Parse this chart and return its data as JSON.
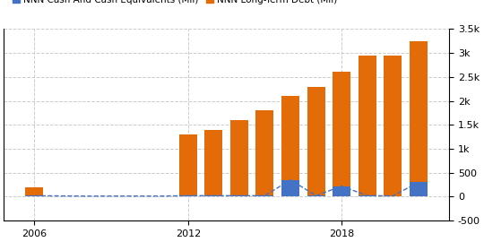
{
  "years": [
    2006,
    2007,
    2008,
    2009,
    2010,
    2011,
    2012,
    2013,
    2014,
    2015,
    2016,
    2017,
    2018,
    2019,
    2020,
    2021
  ],
  "cash": [
    20,
    15,
    12,
    12,
    12,
    12,
    20,
    20,
    20,
    20,
    350,
    20,
    220,
    20,
    15,
    300
  ],
  "debt": [
    200,
    0,
    0,
    0,
    0,
    0,
    1300,
    1400,
    1600,
    1800,
    2100,
    2300,
    2600,
    2950,
    2950,
    3250
  ],
  "cash_color": "#4472C4",
  "debt_color": "#E36C09",
  "ylim": [
    -500,
    3500
  ],
  "yticks": [
    -500,
    0,
    500,
    1000,
    1500,
    2000,
    2500,
    3000,
    3500
  ],
  "ytick_labels": [
    "-500",
    "0",
    "500",
    "1k",
    "1.5k",
    "2k",
    "2.5k",
    "3k",
    "3.5k"
  ],
  "xticks": [
    2006,
    2012,
    2018
  ],
  "bar_width": 0.7,
  "xlim_left": 2004.8,
  "xlim_right": 2022.2,
  "bg_color": "#ffffff",
  "grid_color": "#cccccc",
  "dashed_line_color": "#4472C4",
  "legend_fontsize": 7.5,
  "tick_fontsize": 8
}
